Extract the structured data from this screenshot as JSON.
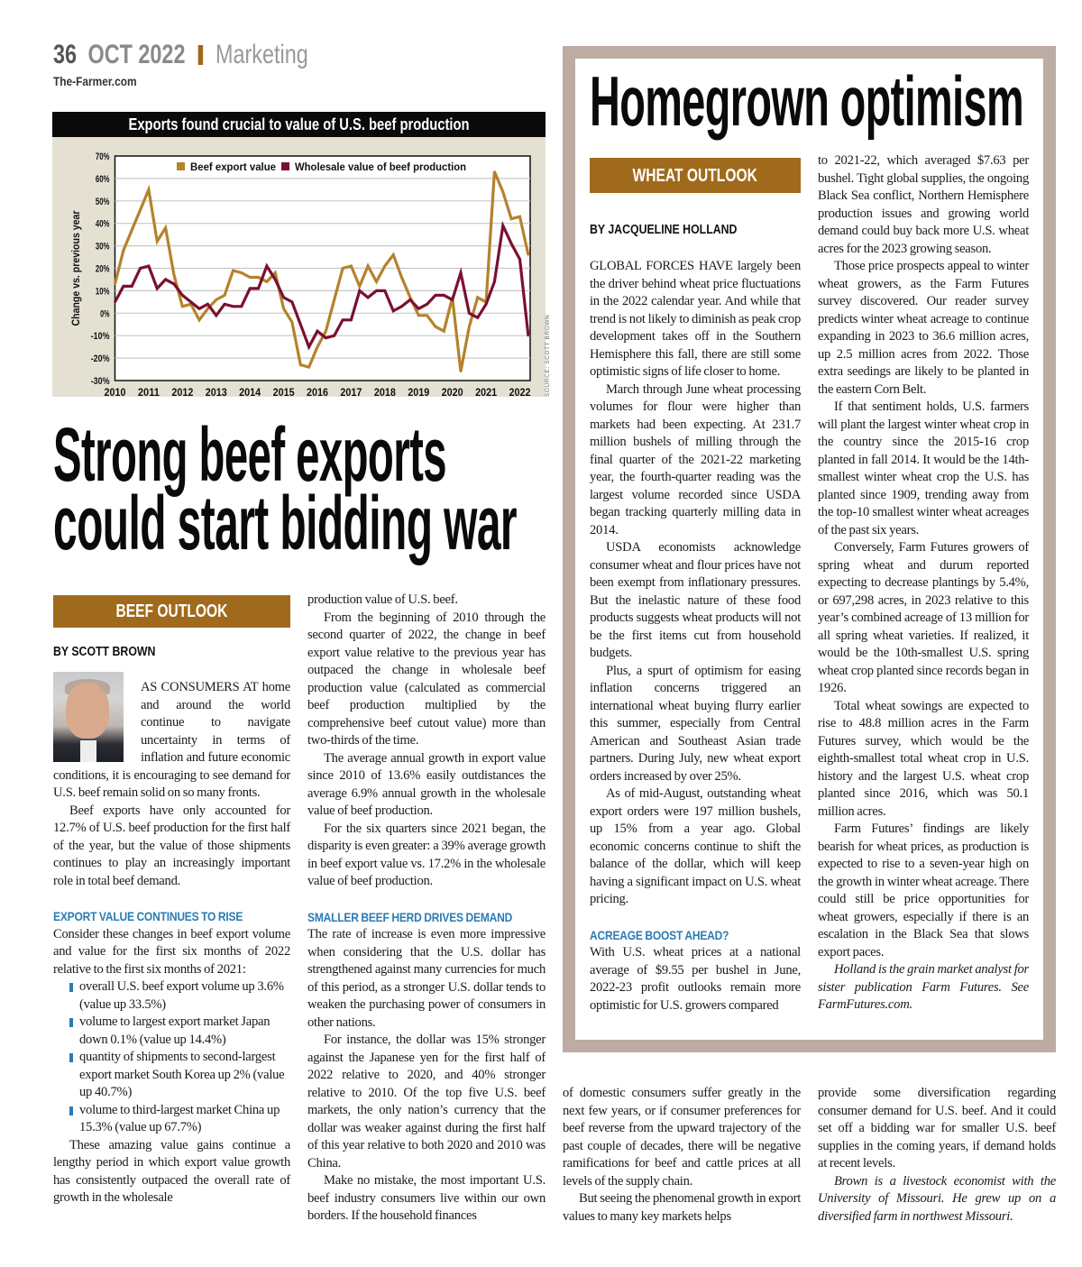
{
  "header": {
    "page_number": "36",
    "date": "OCT 2022",
    "section": "Marketing",
    "site": "The-Farmer.com"
  },
  "chart_data": {
    "type": "line",
    "title": "Exports found crucial to value of U.S. beef production",
    "ylabel": "Change vs. previous year",
    "xlabel": "",
    "ylim": [
      -30,
      70
    ],
    "yticks": [
      "70%",
      "60%",
      "50%",
      "40%",
      "30%",
      "20%",
      "10%",
      "0%",
      "-10%",
      "-20%",
      "-30%"
    ],
    "ytick_values": [
      70,
      60,
      50,
      40,
      30,
      20,
      10,
      0,
      -10,
      -20,
      -30
    ],
    "xticks": [
      "2010",
      "2011",
      "2012",
      "2013",
      "2014",
      "2015",
      "2016",
      "2017",
      "2018",
      "2019",
      "2020",
      "2021",
      "2022"
    ],
    "x_start": "2010 Q1",
    "frequency": "quarterly",
    "grid": true,
    "legend": "top",
    "source": "SOURCE: SCOTT BROWN",
    "series": [
      {
        "name": "Beef export value",
        "color": "#b5822c",
        "values": [
          13,
          28,
          37,
          46,
          55,
          32,
          38,
          17,
          3,
          4,
          -3,
          2,
          6,
          8,
          19,
          18,
          16,
          16,
          14,
          18,
          2,
          -4,
          -23,
          -24,
          -15,
          -8,
          6,
          20,
          21,
          12,
          21,
          14,
          21,
          26,
          16,
          7,
          -1,
          -1,
          -6,
          -8,
          7,
          -26,
          -6,
          7,
          5,
          63,
          54,
          42,
          43,
          26
        ]
      },
      {
        "name": "Wholesale value of beef production",
        "color": "#7b1030",
        "values": [
          5,
          12,
          12,
          20,
          21,
          11,
          15,
          13,
          8,
          5,
          2,
          4,
          -1,
          4,
          3,
          3,
          11,
          11,
          21,
          15,
          7,
          5,
          -5,
          -15,
          -8,
          -11,
          -10,
          -3,
          -3,
          10,
          7,
          10,
          10,
          1,
          3,
          6,
          2,
          4,
          8,
          8,
          6,
          18,
          0,
          -2,
          4,
          14,
          39,
          31,
          24,
          -10
        ]
      }
    ]
  },
  "beef": {
    "headline": [
      "Strong beef exports",
      "could start bidding war"
    ],
    "tag": "BEEF OUTLOOK",
    "byline": "BY SCOTT BROWN",
    "col1": {
      "p1": "AS CONSUMERS AT home and around the world continue to navigate uncertainty in terms of inflation and future economic conditions, it is encouraging to see demand for U.S. beef remain solid on so many fronts.",
      "p2": "Beef exports have only accounted for 12.7% of U.S. beef production for the first half of the year, but the value of those shipments continues to play an increasingly important role in total beef demand.",
      "sub1": "EXPORT VALUE CONTINUES TO RISE",
      "p3": "Consider these changes in beef export volume and value for the first six months of 2022 relative to the first six months of 2021:",
      "bullets": [
        "overall U.S. beef export volume up 3.6% (value up 33.5%)",
        "volume to largest export market Japan down 0.1% (value up 14.4%)",
        "quantity of shipments to second-largest export market South Korea up 2% (value up 40.7%)",
        "volume to third-largest market China up 15.3% (value up 67.7%)"
      ],
      "p4": "These amazing value gains continue a lengthy period in which export value growth has consistently outpaced the overall rate of growth in the wholesale"
    },
    "col2": {
      "p1": "production value of U.S. beef.",
      "p2": "From the beginning of 2010 through the second quarter of 2022, the change in beef export value relative to the previous year has outpaced the change in wholesale beef production value (calculated as commercial beef production multiplied by the comprehensive beef cutout value) more than two-thirds of the time.",
      "p3": "The average annual growth in export value since 2010 of 13.6% easily outdistances the average 6.9% annual growth in the wholesale value of beef production.",
      "p4": "For the six quarters since 2021 began, the disparity is even greater: a 39% average growth in beef export value vs. 17.2% in the wholesale value of beef production.",
      "sub2": "SMALLER BEEF HERD DRIVES DEMAND",
      "p5": "The rate of increase is even more impressive when considering that the U.S. dollar has strengthened against many currencies for much of this period, as a stronger U.S. dollar tends to weaken the purchasing power of consumers in other nations.",
      "p6": "For instance, the dollar was 15% stronger against the Japanese yen for the first half of 2022 relative to 2020, and 40% stronger relative to 2010. Of the top five U.S. beef markets, the only nation’s currency that the dollar was weaker against during the first half of this year relative to both 2020 and 2010 was China.",
      "p7": "Make no mistake, the most important U.S. beef industry consumers live within our own borders. If the household finances"
    },
    "col3": {
      "p1": "of domestic consumers suffer greatly in the next few years, or if consumer preferences for beef reverse from the upward trajectory of the past couple of decades, there will be negative ramifications for beef and cattle prices at all levels of the supply chain.",
      "p2": "But seeing the phenomenal growth in export values to many key markets helps"
    },
    "col4": {
      "p1": "provide some diversification regarding consumer demand for U.S. beef. And it could set off a bidding war for smaller U.S. beef supplies in the coming years, if demand holds at recent levels.",
      "bio": "Brown is a livestock economist with the University of Missouri. He grew up on a diversified farm in northwest Missouri."
    }
  },
  "wheat": {
    "headline": "Homegrown optimism",
    "tag": "WHEAT OUTLOOK",
    "byline": "BY JACQUELINE HOLLAND",
    "col1": {
      "p1": "GLOBAL FORCES HAVE largely been the driver behind wheat price fluctuations in the 2022 calendar year. And while that trend is not likely to diminish as peak crop development takes off in the Southern Hemisphere this fall, there are still some optimistic signs of life closer to home.",
      "p2": "March through June wheat processing volumes for flour were higher than markets had been expecting. At 231.7 million bushels of milling through the final quarter of the 2021-22 marketing year, the fourth-quarter reading was the largest volume recorded since USDA began tracking quarterly milling data in 2014.",
      "p3": "USDA economists acknowledge consumer wheat and flour prices have not been exempt from inflationary pressures. But the inelastic nature of these food products suggests wheat products will not be the first items cut from household budgets.",
      "p4": "Plus, a spurt of optimism for easing inflation concerns triggered an international wheat buying flurry earlier this summer, especially from Central American and Southeast Asian trade partners. During July, new wheat export orders increased by over 25%.",
      "p5": "As of mid-August, outstanding wheat export orders were 197 million bushels, up 15% from a year ago. Global economic concerns continue to shift the balance of the dollar, which will keep having a significant impact on U.S. wheat pricing.",
      "sub": "ACREAGE BOOST AHEAD?",
      "p6": "With U.S. wheat prices at a national average of $9.55 per bushel in June, 2022-23 profit outlooks remain more optimistic for U.S. growers compared"
    },
    "col2": {
      "p1": "to 2021-22, which averaged $7.63 per bushel. Tight global supplies, the ongoing Black Sea conflict, Northern Hemisphere production issues and growing world demand could buy back more U.S. wheat acres for the 2023 growing season.",
      "p2": "Those price prospects appeal to winter wheat growers, as the Farm Futures survey discovered. Our reader survey predicts winter wheat acreage to continue expanding in 2023 to 36.6 million acres, up 2.5 million acres from 2022. Those extra seedings are likely to be planted in the eastern Corn Belt.",
      "p3": "If that sentiment holds, U.S. farmers will plant the largest winter wheat crop in the country since the 2015-16 crop planted in fall 2014. It would be the 14th-smallest winter wheat crop the U.S. has planted since 1909, trending away from the top-10 smallest winter wheat acreages of the past six years.",
      "p4": "Conversely, Farm Futures growers of spring wheat and durum reported expecting to decrease plantings by 5.4%, or 697,298 acres, in 2023 relative to this year’s combined acreage of 13 million for all spring wheat varieties. If realized, it would be the 10th-smallest U.S. spring wheat crop planted since records began in 1926.",
      "p5": "Total wheat sowings are expected to rise to 48.8 million acres in the Farm Futures survey, which would be the eighth-smallest total wheat crop in U.S. history and the largest U.S. wheat crop planted since 2016, which was 50.1 million acres.",
      "p6": "Farm Futures’ findings are likely bearish for wheat prices, as production is expected to rise to a seven-year high on the growth in winter wheat acreage. There could still be price opportunities for wheat growers, especially if there is an escalation in the Black Sea that slows export paces.",
      "bio": "Holland is the grain market analyst for sister publication Farm Futures. See FarmFutures.com."
    }
  }
}
